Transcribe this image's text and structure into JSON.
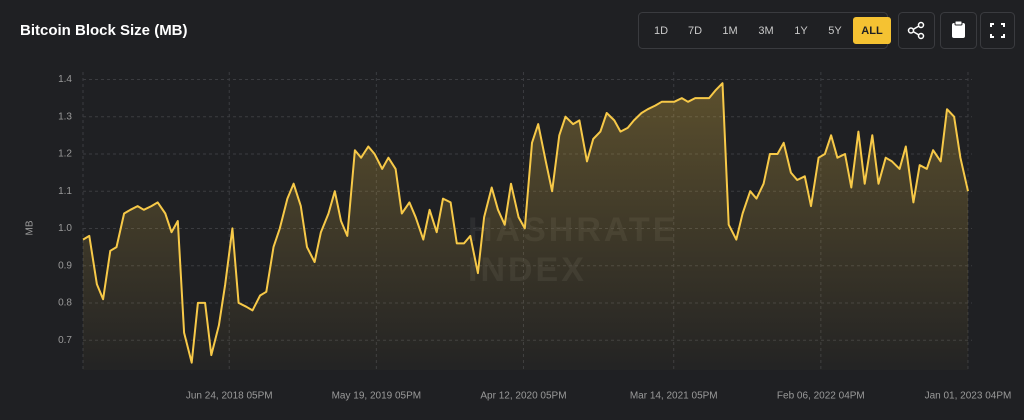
{
  "toolbar": {
    "ranges": [
      "1D",
      "7D",
      "1M",
      "3M",
      "1Y",
      "5Y",
      "ALL"
    ],
    "active": 6
  },
  "chart_data": {
    "type": "area",
    "title": "Bitcoin Block Size (MB)",
    "ylabel": "MB",
    "watermark": [
      "HASHRATE",
      "INDEX"
    ],
    "color": "#f7c948",
    "grid": true,
    "xlim": [
      "2017-08-01",
      "2023-01-10"
    ],
    "ylim": [
      0.62,
      1.42
    ],
    "yticks": [
      0.7,
      0.8,
      0.9,
      {
        "value": 1.0,
        "label": "1.0"
      },
      1.1,
      1.2,
      1.3,
      1.4
    ],
    "xticks": [
      {
        "value": "2018-06-24",
        "label": "Jun 24, 2018 05PM"
      },
      {
        "value": "2019-05-19",
        "label": "May 19, 2019 05PM"
      },
      {
        "value": "2020-04-12",
        "label": "Apr 12, 2020 05PM"
      },
      {
        "value": "2021-03-14",
        "label": "Mar 14, 2021 05PM"
      },
      {
        "value": "2022-02-06",
        "label": "Feb 06, 2022 04PM"
      },
      {
        "value": "2023-01-01",
        "label": "Jan 01, 2023 04PM"
      }
    ],
    "x": [
      "2017-08-01",
      "2017-08-15",
      "2017-09-01",
      "2017-09-15",
      "2017-10-01",
      "2017-10-15",
      "2017-11-01",
      "2017-11-15",
      "2017-12-01",
      "2017-12-15",
      "2018-01-01",
      "2018-01-15",
      "2018-02-01",
      "2018-02-15",
      "2018-03-01",
      "2018-03-15",
      "2018-04-01",
      "2018-04-15",
      "2018-05-01",
      "2018-05-15",
      "2018-06-01",
      "2018-06-15",
      "2018-07-01",
      "2018-07-15",
      "2018-08-01",
      "2018-08-15",
      "2018-09-01",
      "2018-09-15",
      "2018-10-01",
      "2018-10-15",
      "2018-11-01",
      "2018-11-15",
      "2018-12-01",
      "2018-12-15",
      "2019-01-01",
      "2019-01-15",
      "2019-02-01",
      "2019-02-15",
      "2019-03-01",
      "2019-03-15",
      "2019-04-01",
      "2019-04-15",
      "2019-05-01",
      "2019-05-15",
      "2019-06-01",
      "2019-06-15",
      "2019-07-01",
      "2019-07-15",
      "2019-08-01",
      "2019-08-15",
      "2019-09-01",
      "2019-09-15",
      "2019-10-01",
      "2019-10-15",
      "2019-11-01",
      "2019-11-15",
      "2019-12-01",
      "2019-12-15",
      "2020-01-01",
      "2020-01-15",
      "2020-02-01",
      "2020-02-15",
      "2020-03-01",
      "2020-03-15",
      "2020-04-01",
      "2020-04-15",
      "2020-05-01",
      "2020-05-15",
      "2020-06-01",
      "2020-06-15",
      "2020-07-01",
      "2020-07-15",
      "2020-08-01",
      "2020-08-15",
      "2020-09-01",
      "2020-09-15",
      "2020-10-01",
      "2020-10-15",
      "2020-11-01",
      "2020-11-15",
      "2020-12-01",
      "2020-12-15",
      "2021-01-01",
      "2021-01-15",
      "2021-02-01",
      "2021-02-15",
      "2021-03-01",
      "2021-03-15",
      "2021-04-01",
      "2021-04-15",
      "2021-05-01",
      "2021-05-15",
      "2021-06-01",
      "2021-06-15",
      "2021-07-01",
      "2021-07-15",
      "2021-08-01",
      "2021-08-15",
      "2021-09-01",
      "2021-09-15",
      "2021-10-01",
      "2021-10-15",
      "2021-11-01",
      "2021-11-15",
      "2021-12-01",
      "2021-12-15",
      "2022-01-01",
      "2022-01-15",
      "2022-02-01",
      "2022-02-15",
      "2022-03-01",
      "2022-03-15",
      "2022-04-01",
      "2022-04-15",
      "2022-05-01",
      "2022-05-15",
      "2022-06-01",
      "2022-06-15",
      "2022-07-01",
      "2022-07-15",
      "2022-08-01",
      "2022-08-15",
      "2022-09-01",
      "2022-09-15",
      "2022-10-01",
      "2022-10-15",
      "2022-11-01",
      "2022-11-15",
      "2022-12-01",
      "2022-12-15",
      "2023-01-01"
    ],
    "values": [
      0.97,
      0.98,
      0.85,
      0.81,
      0.94,
      0.95,
      1.04,
      1.05,
      1.06,
      1.05,
      1.06,
      1.07,
      1.04,
      0.99,
      1.02,
      0.72,
      0.64,
      0.8,
      0.8,
      0.66,
      0.74,
      0.85,
      1.0,
      0.8,
      0.79,
      0.78,
      0.82,
      0.83,
      0.95,
      1.0,
      1.08,
      1.12,
      1.06,
      0.95,
      0.91,
      0.99,
      1.04,
      1.1,
      1.02,
      0.98,
      1.21,
      1.19,
      1.22,
      1.2,
      1.16,
      1.19,
      1.16,
      1.04,
      1.07,
      1.03,
      0.97,
      1.05,
      0.99,
      1.08,
      1.07,
      0.96,
      0.96,
      0.98,
      0.88,
      1.03,
      1.11,
      1.05,
      1.01,
      1.12,
      1.03,
      1.0,
      1.23,
      1.28,
      1.18,
      1.1,
      1.25,
      1.3,
      1.28,
      1.29,
      1.18,
      1.24,
      1.26,
      1.31,
      1.29,
      1.26,
      1.27,
      1.29,
      1.31,
      1.32,
      1.33,
      1.34,
      1.34,
      1.34,
      1.35,
      1.34,
      1.35,
      1.35,
      1.35,
      1.37,
      1.39,
      1.01,
      0.97,
      1.04,
      1.1,
      1.08,
      1.12,
      1.2,
      1.2,
      1.23,
      1.15,
      1.13,
      1.14,
      1.06,
      1.19,
      1.2,
      1.25,
      1.19,
      1.2,
      1.11,
      1.26,
      1.12,
      1.25,
      1.12,
      1.19,
      1.18,
      1.16,
      1.22,
      1.07,
      1.17,
      1.16,
      1.21,
      1.18,
      1.32,
      1.3,
      1.19,
      1.1
    ]
  }
}
